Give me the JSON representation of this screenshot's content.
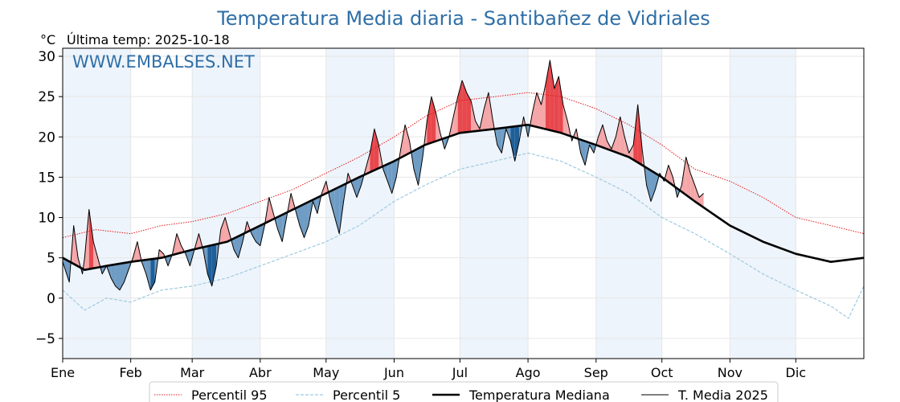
{
  "chart_data": {
    "type": "line",
    "title": "Temperatura Media diaria - Santibañez de Vidriales",
    "unit": "°C",
    "subtitle": "Última temp: 2025-10-18",
    "watermark": "WWW.EMBALSES.NET",
    "x_tick_labels": [
      "Ene",
      "Feb",
      "Mar",
      "Abr",
      "May",
      "Jun",
      "Jul",
      "Ago",
      "Sep",
      "Oct",
      "Nov",
      "Dic"
    ],
    "x_tick_days": [
      0,
      31,
      59,
      90,
      120,
      151,
      181,
      212,
      243,
      273,
      304,
      334
    ],
    "xlim": [
      0,
      365
    ],
    "ylim": [
      -7.5,
      31
    ],
    "y_ticks": [
      -5,
      0,
      5,
      10,
      15,
      20,
      25,
      30
    ],
    "grid": true,
    "legend_position": "bottom",
    "colors": {
      "p95": "#e41a1c",
      "p5": "#9ecae1",
      "median": "#000000",
      "current": "#000000",
      "above": "#f4a6a8",
      "above_strong": "#e8474c",
      "below": "#6f9cc4",
      "below_strong": "#1f5f99",
      "month_band": "#eef4fb"
    },
    "series": [
      {
        "name": "Percentil 95",
        "style": "dotted",
        "points": [
          [
            0,
            7.5
          ],
          [
            15,
            8.5
          ],
          [
            31,
            8.0
          ],
          [
            45,
            9.0
          ],
          [
            59,
            9.5
          ],
          [
            75,
            10.5
          ],
          [
            90,
            12.0
          ],
          [
            105,
            13.5
          ],
          [
            120,
            15.5
          ],
          [
            135,
            17.5
          ],
          [
            151,
            20.0
          ],
          [
            165,
            22.5
          ],
          [
            181,
            24.5
          ],
          [
            197,
            25.0
          ],
          [
            212,
            25.5
          ],
          [
            227,
            25.0
          ],
          [
            243,
            23.5
          ],
          [
            258,
            21.5
          ],
          [
            273,
            19.0
          ],
          [
            288,
            16.0
          ],
          [
            304,
            14.5
          ],
          [
            319,
            12.5
          ],
          [
            334,
            10.0
          ],
          [
            350,
            9.0
          ],
          [
            365,
            8.0
          ]
        ]
      },
      {
        "name": "Percentil 5",
        "style": "dashed",
        "points": [
          [
            0,
            1.0
          ],
          [
            10,
            -1.5
          ],
          [
            20,
            0.0
          ],
          [
            31,
            -0.5
          ],
          [
            45,
            1.0
          ],
          [
            59,
            1.5
          ],
          [
            75,
            2.5
          ],
          [
            90,
            4.0
          ],
          [
            105,
            5.5
          ],
          [
            120,
            7.0
          ],
          [
            135,
            9.0
          ],
          [
            151,
            12.0
          ],
          [
            165,
            14.0
          ],
          [
            181,
            16.0
          ],
          [
            197,
            17.0
          ],
          [
            212,
            18.0
          ],
          [
            227,
            17.0
          ],
          [
            243,
            15.0
          ],
          [
            258,
            13.0
          ],
          [
            273,
            10.0
          ],
          [
            288,
            8.0
          ],
          [
            304,
            5.5
          ],
          [
            319,
            3.0
          ],
          [
            334,
            1.0
          ],
          [
            350,
            -1.0
          ],
          [
            358,
            -2.5
          ],
          [
            365,
            1.5
          ]
        ]
      },
      {
        "name": "Temperatura Mediana",
        "style": "solid-thick",
        "points": [
          [
            0,
            5.0
          ],
          [
            10,
            3.5
          ],
          [
            20,
            4.0
          ],
          [
            31,
            4.5
          ],
          [
            45,
            5.0
          ],
          [
            59,
            6.0
          ],
          [
            75,
            7.0
          ],
          [
            90,
            9.0
          ],
          [
            105,
            11.0
          ],
          [
            120,
            13.0
          ],
          [
            135,
            15.0
          ],
          [
            151,
            17.0
          ],
          [
            165,
            19.0
          ],
          [
            181,
            20.5
          ],
          [
            197,
            21.0
          ],
          [
            212,
            21.5
          ],
          [
            227,
            20.5
          ],
          [
            243,
            19.0
          ],
          [
            258,
            17.5
          ],
          [
            273,
            15.0
          ],
          [
            288,
            12.0
          ],
          [
            304,
            9.0
          ],
          [
            319,
            7.0
          ],
          [
            334,
            5.5
          ],
          [
            350,
            4.5
          ],
          [
            365,
            5.0
          ]
        ]
      },
      {
        "name": "T. Media 2025",
        "style": "solid-thin",
        "points": [
          [
            0,
            4.5
          ],
          [
            3,
            2.0
          ],
          [
            5,
            9.0
          ],
          [
            7,
            5.0
          ],
          [
            9,
            3.0
          ],
          [
            10,
            5.0
          ],
          [
            12,
            11.0
          ],
          [
            14,
            7.0
          ],
          [
            16,
            5.0
          ],
          [
            18,
            3.0
          ],
          [
            20,
            4.0
          ],
          [
            22,
            2.5
          ],
          [
            24,
            1.5
          ],
          [
            26,
            1.0
          ],
          [
            28,
            2.0
          ],
          [
            30,
            3.5
          ],
          [
            32,
            5.0
          ],
          [
            34,
            7.0
          ],
          [
            36,
            4.5
          ],
          [
            38,
            3.0
          ],
          [
            40,
            1.0
          ],
          [
            42,
            2.0
          ],
          [
            44,
            6.0
          ],
          [
            46,
            5.5
          ],
          [
            48,
            4.0
          ],
          [
            50,
            5.5
          ],
          [
            52,
            8.0
          ],
          [
            54,
            6.5
          ],
          [
            56,
            5.5
          ],
          [
            58,
            4.0
          ],
          [
            60,
            6.0
          ],
          [
            62,
            8.0
          ],
          [
            64,
            6.0
          ],
          [
            66,
            3.0
          ],
          [
            68,
            1.5
          ],
          [
            70,
            4.0
          ],
          [
            72,
            8.5
          ],
          [
            74,
            10.0
          ],
          [
            76,
            8.0
          ],
          [
            78,
            6.0
          ],
          [
            80,
            5.0
          ],
          [
            82,
            7.0
          ],
          [
            84,
            9.5
          ],
          [
            86,
            8.0
          ],
          [
            88,
            7.0
          ],
          [
            90,
            6.5
          ],
          [
            92,
            9.0
          ],
          [
            94,
            12.5
          ],
          [
            96,
            10.5
          ],
          [
            98,
            8.5
          ],
          [
            100,
            7.0
          ],
          [
            102,
            10.0
          ],
          [
            104,
            13.0
          ],
          [
            106,
            11.0
          ],
          [
            108,
            9.0
          ],
          [
            110,
            7.5
          ],
          [
            112,
            9.0
          ],
          [
            114,
            12.0
          ],
          [
            116,
            10.5
          ],
          [
            118,
            13.0
          ],
          [
            120,
            14.5
          ],
          [
            122,
            12.0
          ],
          [
            124,
            10.0
          ],
          [
            126,
            8.0
          ],
          [
            128,
            12.0
          ],
          [
            130,
            15.5
          ],
          [
            132,
            14.0
          ],
          [
            134,
            12.5
          ],
          [
            136,
            14.0
          ],
          [
            138,
            16.0
          ],
          [
            140,
            18.0
          ],
          [
            142,
            21.0
          ],
          [
            144,
            19.0
          ],
          [
            146,
            16.0
          ],
          [
            148,
            14.5
          ],
          [
            150,
            13.0
          ],
          [
            152,
            15.0
          ],
          [
            154,
            18.5
          ],
          [
            156,
            21.5
          ],
          [
            158,
            19.5
          ],
          [
            160,
            16.0
          ],
          [
            162,
            14.0
          ],
          [
            164,
            17.5
          ],
          [
            166,
            22.0
          ],
          [
            168,
            25.0
          ],
          [
            170,
            23.0
          ],
          [
            172,
            20.5
          ],
          [
            174,
            18.5
          ],
          [
            176,
            20.0
          ],
          [
            178,
            22.5
          ],
          [
            180,
            25.0
          ],
          [
            182,
            27.0
          ],
          [
            184,
            25.5
          ],
          [
            186,
            24.5
          ],
          [
            188,
            22.0
          ],
          [
            190,
            21.0
          ],
          [
            192,
            23.5
          ],
          [
            194,
            25.5
          ],
          [
            196,
            22.0
          ],
          [
            198,
            19.0
          ],
          [
            200,
            18.0
          ],
          [
            202,
            21.0
          ],
          [
            204,
            19.5
          ],
          [
            206,
            17.0
          ],
          [
            208,
            19.5
          ],
          [
            210,
            22.5
          ],
          [
            212,
            20.0
          ],
          [
            214,
            23.0
          ],
          [
            216,
            25.5
          ],
          [
            218,
            24.0
          ],
          [
            220,
            26.5
          ],
          [
            222,
            29.5
          ],
          [
            224,
            26.0
          ],
          [
            226,
            27.5
          ],
          [
            228,
            24.0
          ],
          [
            230,
            22.0
          ],
          [
            232,
            19.5
          ],
          [
            234,
            21.0
          ],
          [
            236,
            18.0
          ],
          [
            238,
            16.5
          ],
          [
            240,
            19.0
          ],
          [
            242,
            18.0
          ],
          [
            244,
            20.0
          ],
          [
            246,
            21.5
          ],
          [
            248,
            19.5
          ],
          [
            250,
            18.5
          ],
          [
            252,
            20.0
          ],
          [
            254,
            22.5
          ],
          [
            256,
            20.0
          ],
          [
            258,
            18.0
          ],
          [
            260,
            19.0
          ],
          [
            262,
            24.0
          ],
          [
            264,
            18.5
          ],
          [
            266,
            14.0
          ],
          [
            268,
            12.0
          ],
          [
            270,
            13.5
          ],
          [
            272,
            15.5
          ],
          [
            274,
            14.5
          ],
          [
            276,
            16.5
          ],
          [
            278,
            15.0
          ],
          [
            280,
            12.5
          ],
          [
            282,
            14.0
          ],
          [
            284,
            17.5
          ],
          [
            286,
            15.5
          ],
          [
            288,
            14.0
          ],
          [
            290,
            12.5
          ],
          [
            292,
            13.0
          ]
        ]
      }
    ],
    "legend": [
      "Percentil 95",
      "Percentil 5",
      "Temperatura Mediana",
      "T. Media 2025"
    ]
  }
}
